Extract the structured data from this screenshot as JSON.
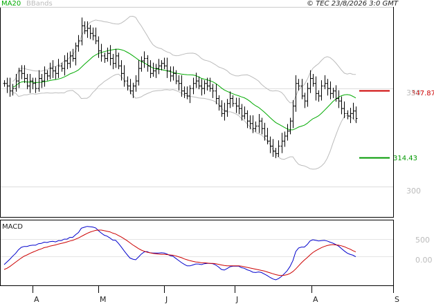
{
  "chart_data": [
    {
      "type": "ohlc",
      "legend": {
        "ma_label": "MA20",
        "bbands_label": "BBands",
        "ma_color": "#00aa00",
        "bbands_color": "#bbbbbb"
      },
      "copyright": "© TEC 23/8/2026 3:0 GMT",
      "y_ticks": [
        "350",
        "300"
      ],
      "months": [
        "A",
        "M",
        "J",
        "J",
        "A",
        "S"
      ],
      "ylim": [
        292,
        375
      ],
      "resistance": {
        "value": 347.87,
        "label": "347.87",
        "color": "#cc0000"
      },
      "support": {
        "value": 314.43,
        "label": "314.43",
        "color": "#009900"
      },
      "close": [
        345,
        344,
        342,
        343,
        346,
        350,
        349,
        347,
        344,
        346,
        345,
        343,
        347,
        346,
        349,
        348,
        351,
        350,
        349,
        352,
        351,
        354,
        353,
        356,
        355,
        360,
        362,
        368,
        366,
        367,
        365,
        364,
        362,
        358,
        356,
        355,
        357,
        355,
        353,
        356,
        352,
        349,
        346,
        344,
        342,
        344,
        346,
        351,
        354,
        355,
        352,
        349,
        350,
        351,
        352,
        353,
        352,
        350,
        348,
        349,
        346,
        345,
        342,
        341,
        340,
        343,
        345,
        346,
        344,
        343,
        345,
        344,
        343,
        342,
        339,
        336,
        333,
        334,
        337,
        339,
        337,
        336,
        335,
        332,
        333,
        330,
        329,
        327,
        328,
        330,
        327,
        324,
        322,
        320,
        318,
        317,
        320,
        322,
        324,
        326,
        330,
        336,
        345,
        344,
        340,
        338,
        343,
        347,
        345,
        341,
        340,
        344,
        345,
        343,
        341,
        342,
        339,
        338,
        335,
        333,
        332,
        333,
        334,
        331
      ]
    },
    {
      "type": "line",
      "title": "MACD",
      "y_ticks": [
        "500",
        "0.00"
      ],
      "series": [
        {
          "color": "#0000cc",
          "values": [
            -3.4,
            -2.5,
            -1.6,
            -0.6,
            0.3,
            1.5,
            2.3,
            2.6,
            2.6,
            2.9,
            3.0,
            3.0,
            3.5,
            3.6,
            4.0,
            3.9,
            4.2,
            4.3,
            4.1,
            4.5,
            4.5,
            5.0,
            5.0,
            5.6,
            5.6,
            6.5,
            7.2,
            8.6,
            8.9,
            9.2,
            9.1,
            9.0,
            8.7,
            7.8,
            7.0,
            6.3,
            6.0,
            5.4,
            4.7,
            4.6,
            3.6,
            2.4,
            1.1,
            -0.1,
            -1.2,
            -1.6,
            -1.8,
            -0.9,
            0.1,
            0.8,
            0.9,
            0.5,
            0.4,
            0.4,
            0.4,
            0.5,
            0.4,
            0.1,
            -0.4,
            -0.6,
            -1.3,
            -2.0,
            -2.7,
            -3.3,
            -3.8,
            -3.8,
            -3.5,
            -3.2,
            -3.2,
            -3.4,
            -3.1,
            -3.0,
            -3.0,
            -3.1,
            -3.5,
            -4.2,
            -5.0,
            -5.2,
            -4.7,
            -4.1,
            -3.9,
            -3.9,
            -3.9,
            -4.4,
            -4.6,
            -5.1,
            -5.4,
            -5.9,
            -6.0,
            -5.8,
            -6.0,
            -6.5,
            -7.0,
            -7.6,
            -8.1,
            -8.4,
            -8.0,
            -7.3,
            -6.4,
            -5.4,
            -4.0,
            -2.1,
            0.9,
            2.1,
            2.4,
            2.4,
            3.2,
            4.4,
            4.8,
            4.6,
            4.4,
            4.5,
            4.6,
            4.4,
            4.0,
            3.7,
            3.2,
            2.7,
            1.9,
            1.1,
            0.4,
            0.0,
            -0.3,
            -0.8
          ]
        },
        {
          "color": "#cc0000",
          "values": [
            -5.0,
            -4.6,
            -4.0,
            -3.3,
            -2.6,
            -1.9,
            -1.2,
            -0.6,
            -0.2,
            0.3,
            0.7,
            1.1,
            1.5,
            1.8,
            2.2,
            2.4,
            2.7,
            2.9,
            3.1,
            3.4,
            3.6,
            3.8,
            4.1,
            4.4,
            4.6,
            5.0,
            5.4,
            5.9,
            6.4,
            6.9,
            7.3,
            7.6,
            7.9,
            8.0,
            8.0,
            7.8,
            7.6,
            7.4,
            7.0,
            6.7,
            6.2,
            5.7,
            5.1,
            4.5,
            3.8,
            3.1,
            2.5,
            1.9,
            1.4,
            1.0,
            0.7,
            0.5,
            0.3,
            0.2,
            0.1,
            0.0,
            0.0,
            -0.1,
            -0.2,
            -0.3,
            -0.5,
            -0.8,
            -1.1,
            -1.5,
            -1.8,
            -2.1,
            -2.3,
            -2.5,
            -2.6,
            -2.8,
            -2.8,
            -2.9,
            -3.0,
            -3.0,
            -3.1,
            -3.3,
            -3.5,
            -3.7,
            -3.8,
            -3.8,
            -3.8,
            -3.8,
            -3.8,
            -3.9,
            -4.1,
            -4.3,
            -4.5,
            -4.7,
            -4.9,
            -5.1,
            -5.3,
            -5.5,
            -5.8,
            -6.1,
            -6.4,
            -6.7,
            -6.9,
            -7.0,
            -6.9,
            -6.7,
            -6.3,
            -5.7,
            -4.8,
            -3.8,
            -2.8,
            -1.9,
            -1.1,
            -0.2,
            0.6,
            1.2,
            1.7,
            2.2,
            2.6,
            2.9,
            3.1,
            3.2,
            3.1,
            3.0,
            2.8,
            2.5,
            2.1,
            1.7,
            1.2,
            0.8
          ]
        }
      ]
    }
  ]
}
